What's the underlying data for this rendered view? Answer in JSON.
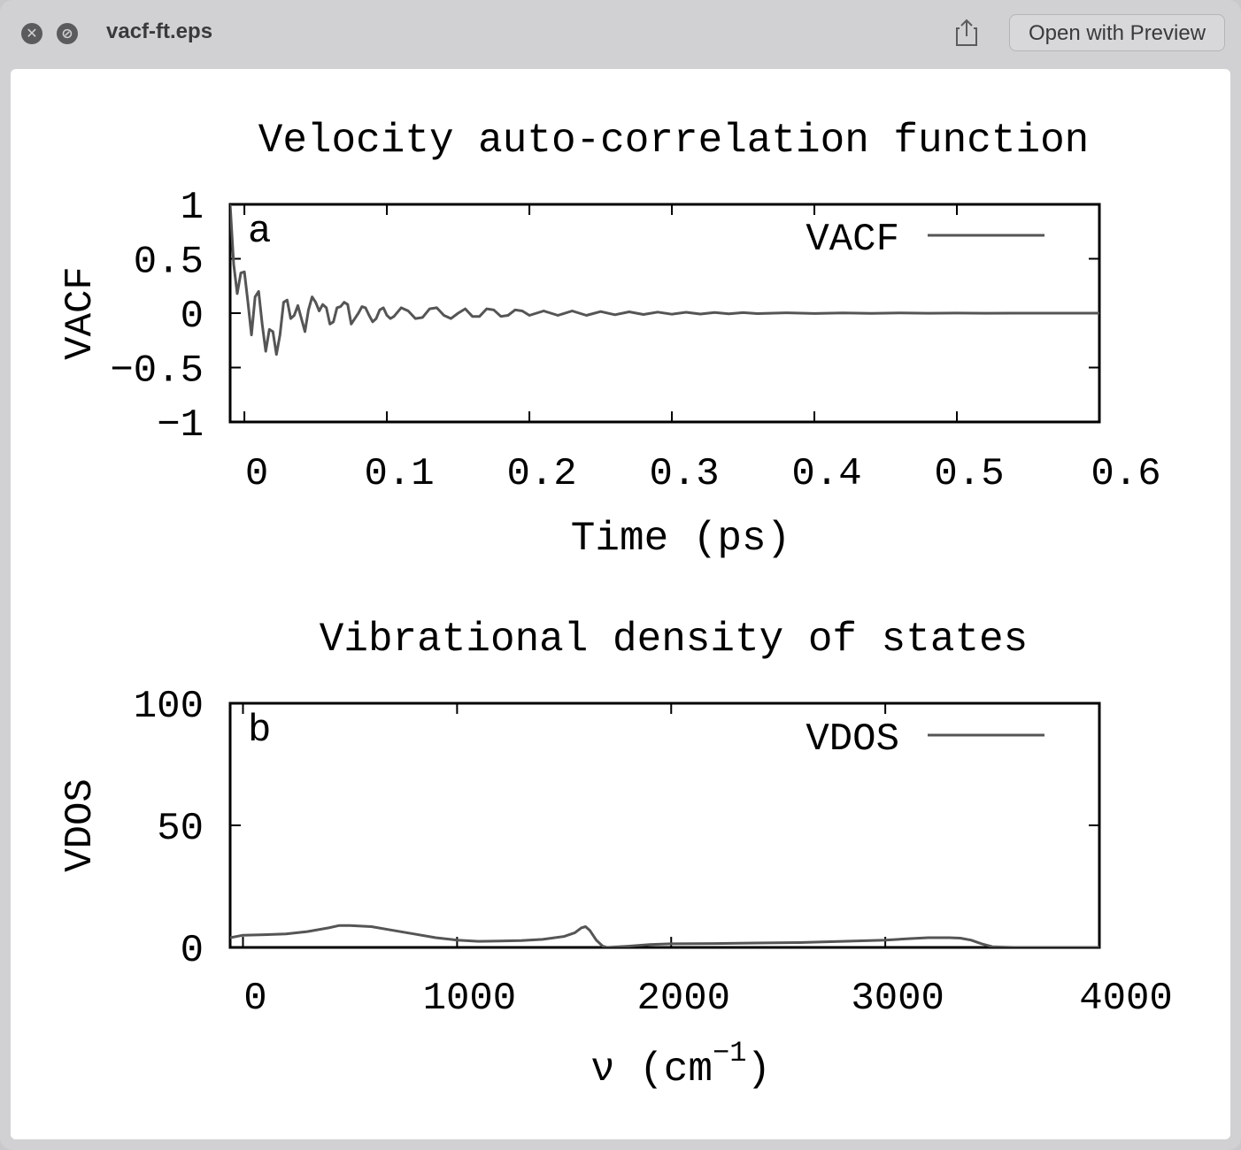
{
  "window": {
    "title": "vacf-ft.eps",
    "open_button_label": "Open with Preview",
    "icons": {
      "close": "close-icon",
      "minimize": "minimize-icon",
      "share": "share-icon"
    }
  },
  "chart_data": [
    {
      "type": "line",
      "title": "Velocity auto-correlation function",
      "panel_label": "a",
      "xlabel": "Time (ps)",
      "ylabel": "VACF",
      "xlim": [
        -0.01,
        0.6
      ],
      "ylim": [
        -1,
        1
      ],
      "xticks": [
        0,
        0.1,
        0.2,
        0.3,
        0.4,
        0.5,
        0.6
      ],
      "xtick_labels": [
        "0",
        "0.1",
        "0.2",
        "0.3",
        "0.4",
        "0.5",
        "0.6"
      ],
      "yticks": [
        -1,
        -0.5,
        0,
        0.5,
        1
      ],
      "ytick_labels": [
        "−1",
        "−0.5",
        "0",
        "0.5",
        "1"
      ],
      "legend_position": "top-right",
      "color": "#555555",
      "series": [
        {
          "name": "VACF",
          "x": [
            -0.01,
            -0.0075,
            -0.005,
            -0.0025,
            0,
            0.0025,
            0.005,
            0.0075,
            0.01,
            0.0125,
            0.015,
            0.0175,
            0.02,
            0.0225,
            0.025,
            0.0275,
            0.03,
            0.0325,
            0.035,
            0.0375,
            0.04,
            0.0425,
            0.045,
            0.0475,
            0.05,
            0.0525,
            0.055,
            0.0575,
            0.06,
            0.0625,
            0.065,
            0.0675,
            0.07,
            0.0725,
            0.075,
            0.0775,
            0.08,
            0.0825,
            0.085,
            0.0875,
            0.09,
            0.0925,
            0.095,
            0.0975,
            0.1,
            0.1025,
            0.105,
            0.11,
            0.115,
            0.12,
            0.125,
            0.13,
            0.135,
            0.14,
            0.145,
            0.15,
            0.155,
            0.16,
            0.165,
            0.17,
            0.175,
            0.18,
            0.185,
            0.19,
            0.195,
            0.2,
            0.21,
            0.22,
            0.23,
            0.24,
            0.25,
            0.26,
            0.27,
            0.28,
            0.29,
            0.3,
            0.31,
            0.32,
            0.33,
            0.34,
            0.35,
            0.36,
            0.38,
            0.4,
            0.42,
            0.44,
            0.46,
            0.48,
            0.5,
            0.52,
            0.54,
            0.56,
            0.58,
            0.6
          ],
          "y": [
            1.0,
            0.45,
            0.18,
            0.37,
            0.38,
            0.1,
            -0.2,
            0.15,
            0.2,
            -0.1,
            -0.35,
            -0.15,
            -0.17,
            -0.38,
            -0.2,
            0.1,
            0.12,
            -0.05,
            -0.02,
            0.07,
            -0.05,
            -0.17,
            0.03,
            0.15,
            0.1,
            0.02,
            0.08,
            0.05,
            -0.1,
            -0.08,
            0.05,
            0.06,
            0.1,
            0.08,
            -0.1,
            -0.05,
            0.0,
            0.06,
            0.05,
            -0.02,
            -0.08,
            -0.05,
            0.03,
            0.05,
            -0.02,
            -0.05,
            -0.03,
            0.05,
            0.02,
            -0.05,
            -0.04,
            0.04,
            0.05,
            -0.02,
            -0.05,
            0.0,
            0.04,
            -0.03,
            -0.03,
            0.04,
            0.03,
            -0.03,
            -0.02,
            0.03,
            0.02,
            -0.02,
            0.02,
            -0.02,
            0.02,
            -0.02,
            0.015,
            -0.015,
            0.012,
            -0.012,
            0.01,
            -0.01,
            0.008,
            -0.008,
            0.006,
            -0.006,
            0.005,
            -0.004,
            0.003,
            -0.003,
            0.002,
            -0.002,
            0.002,
            -0.001,
            0.001,
            -0.001,
            0.0,
            0.0,
            0.0,
            0.0
          ]
        }
      ]
    },
    {
      "type": "line",
      "title": "Vibrational density of states",
      "panel_label": "b",
      "xlabel": "ν (cm",
      "xlabel_superscript": "−1",
      "xlabel_suffix": ")",
      "ylabel": "VDOS",
      "xlim": [
        -60,
        4000
      ],
      "ylim": [
        0,
        100
      ],
      "xticks": [
        0,
        1000,
        2000,
        3000,
        4000
      ],
      "xtick_labels": [
        "0",
        "1000",
        "2000",
        "3000",
        "4000"
      ],
      "yticks": [
        0,
        50,
        100
      ],
      "ytick_labels": [
        "0",
        "50",
        "100"
      ],
      "legend_position": "top-right",
      "color": "#555555",
      "series": [
        {
          "name": "VDOS",
          "x": [
            -60,
            0,
            100,
            200,
            300,
            400,
            450,
            500,
            600,
            700,
            800,
            900,
            1000,
            1100,
            1200,
            1300,
            1400,
            1500,
            1550,
            1580,
            1600,
            1620,
            1650,
            1680,
            1700,
            1800,
            1900,
            2000,
            2200,
            2400,
            2600,
            2800,
            3000,
            3100,
            3200,
            3300,
            3350,
            3400,
            3450,
            3500,
            3600,
            3800,
            4000
          ],
          "y": [
            4,
            5,
            5.2,
            5.5,
            6.5,
            8,
            9,
            9,
            8.5,
            7,
            5.5,
            4,
            3,
            2.5,
            2.6,
            2.8,
            3.3,
            4.5,
            6,
            8,
            8.5,
            7,
            3,
            0.5,
            0,
            0.5,
            1.2,
            1.5,
            1.6,
            1.8,
            2,
            2.5,
            3,
            3.5,
            4,
            4,
            3.8,
            3,
            1.5,
            0.3,
            0,
            0,
            0
          ]
        }
      ]
    }
  ]
}
